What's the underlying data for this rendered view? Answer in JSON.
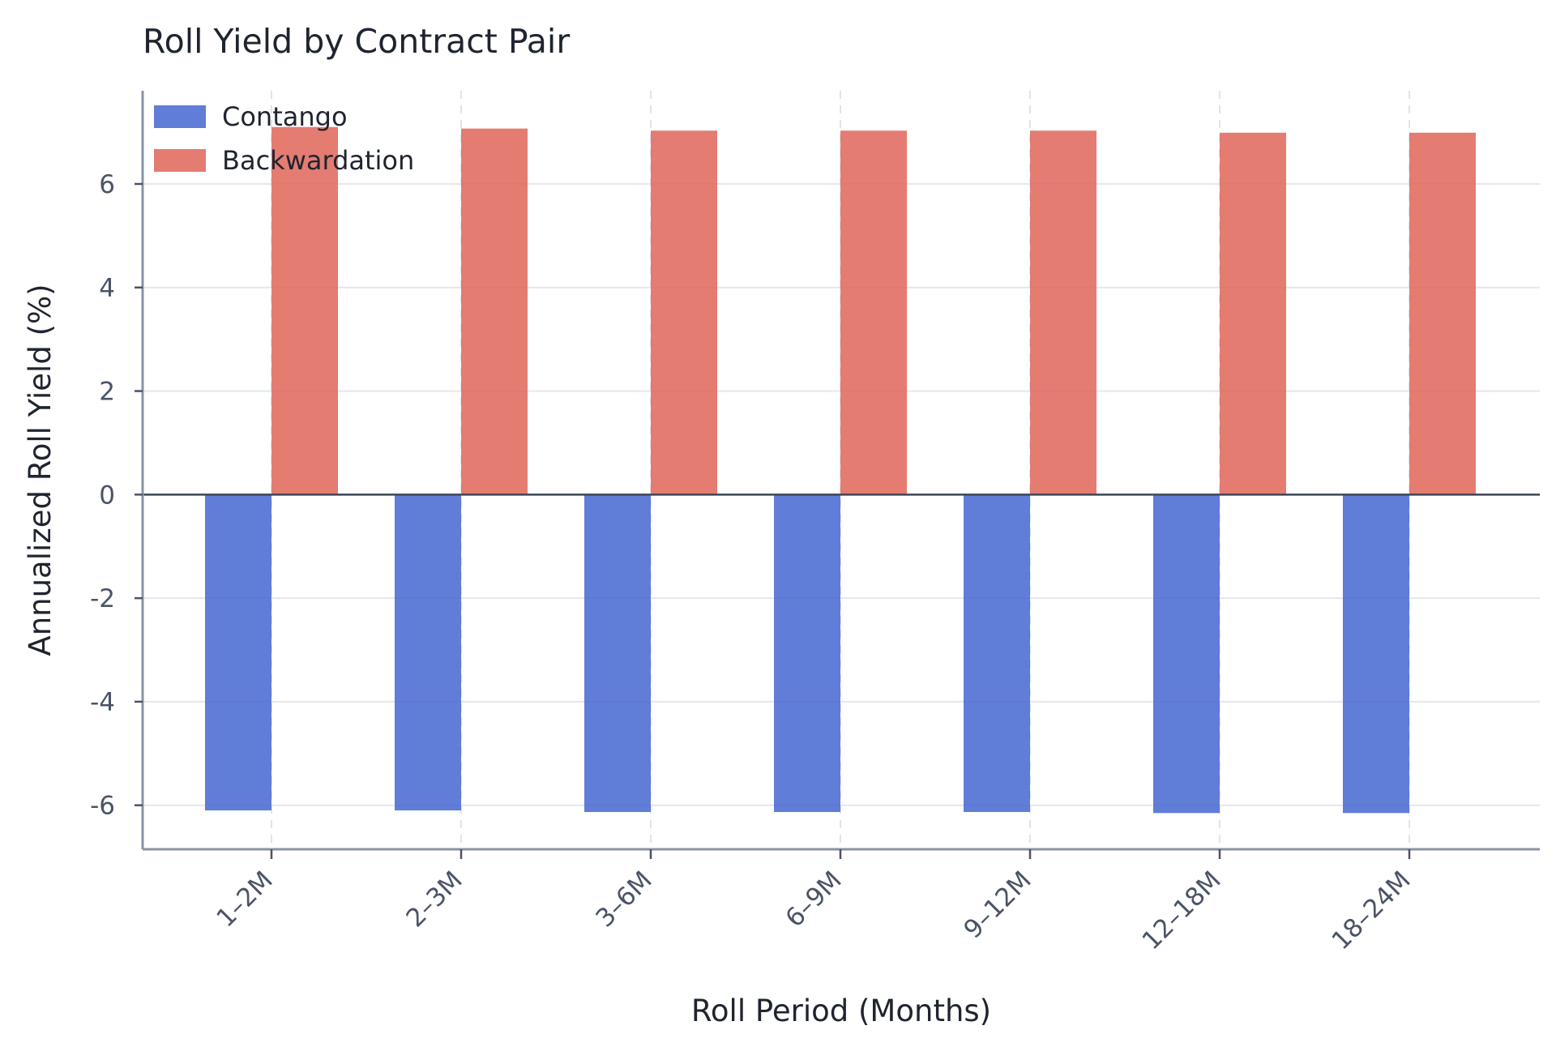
{
  "chart_data": {
    "type": "bar",
    "title": "Roll Yield by Contract Pair",
    "xlabel": "Roll Period (Months)",
    "ylabel": "Annualized Roll Yield (%)",
    "categories": [
      "1–2M",
      "2–3M",
      "3–6M",
      "6–9M",
      "9–12M",
      "12–18M",
      "18–24M"
    ],
    "series": [
      {
        "name": "Contango",
        "color": "#4a6bd1",
        "values": [
          -6.1,
          -6.1,
          -6.13,
          -6.13,
          -6.13,
          -6.15,
          -6.15
        ]
      },
      {
        "name": "Backwardation",
        "color": "#e06a5e",
        "values": [
          7.1,
          7.07,
          7.03,
          7.03,
          7.03,
          6.99,
          6.99
        ]
      }
    ],
    "ylim": [
      -6.85,
      7.8
    ],
    "yticks": [
      6,
      4,
      2,
      0,
      -2,
      -4,
      -6
    ],
    "ytick_labels": [
      "6",
      "4",
      "2",
      "0",
      "-2",
      "-4",
      "-6"
    ],
    "grid": true,
    "legend_position": "top-left"
  }
}
